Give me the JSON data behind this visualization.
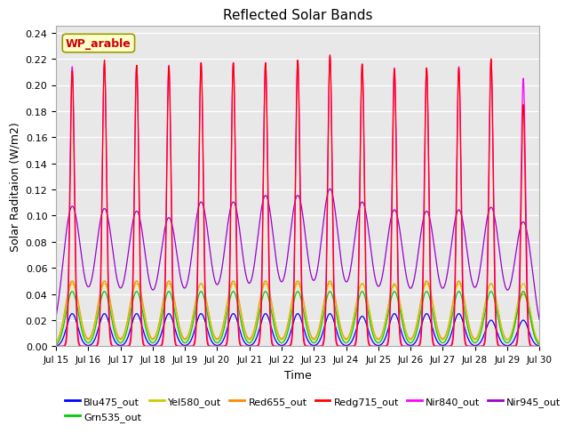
{
  "title": "Reflected Solar Bands",
  "xlabel": "Time",
  "ylabel": "Solar Raditaion (W/m2)",
  "annotation": "WP_arable",
  "annotation_color": "#cc0000",
  "annotation_bg": "#ffffcc",
  "annotation_border": "#999900",
  "ylim": [
    0,
    0.245
  ],
  "yticks": [
    0.0,
    0.02,
    0.04,
    0.06,
    0.08,
    0.1,
    0.12,
    0.14,
    0.16,
    0.18,
    0.2,
    0.22,
    0.24
  ],
  "xtick_labels": [
    "Jul 15",
    "Jul 16",
    "Jul 17",
    "Jul 18",
    "Jul 19",
    "Jul 20",
    "Jul 21",
    "Jul 22",
    "Jul 23",
    "Jul 24",
    "Jul 25",
    "Jul 26",
    "Jul 27",
    "Jul 28",
    "Jul 29",
    "Jul 30"
  ],
  "num_days": 15,
  "bg_color": "#e8e8e8",
  "series": {
    "Blu475_out": {
      "color": "#0000ff"
    },
    "Grn535_out": {
      "color": "#00cc00"
    },
    "Yel580_out": {
      "color": "#cccc00"
    },
    "Red655_out": {
      "color": "#ff8800"
    },
    "Redg715_out": {
      "color": "#ff0000"
    },
    "Nir840_out": {
      "color": "#ff00ff"
    },
    "Nir945_out": {
      "color": "#9900cc"
    }
  },
  "legend_order": [
    "Blu475_out",
    "Grn535_out",
    "Yel580_out",
    "Red655_out",
    "Redg715_out",
    "Nir840_out",
    "Nir945_out"
  ]
}
